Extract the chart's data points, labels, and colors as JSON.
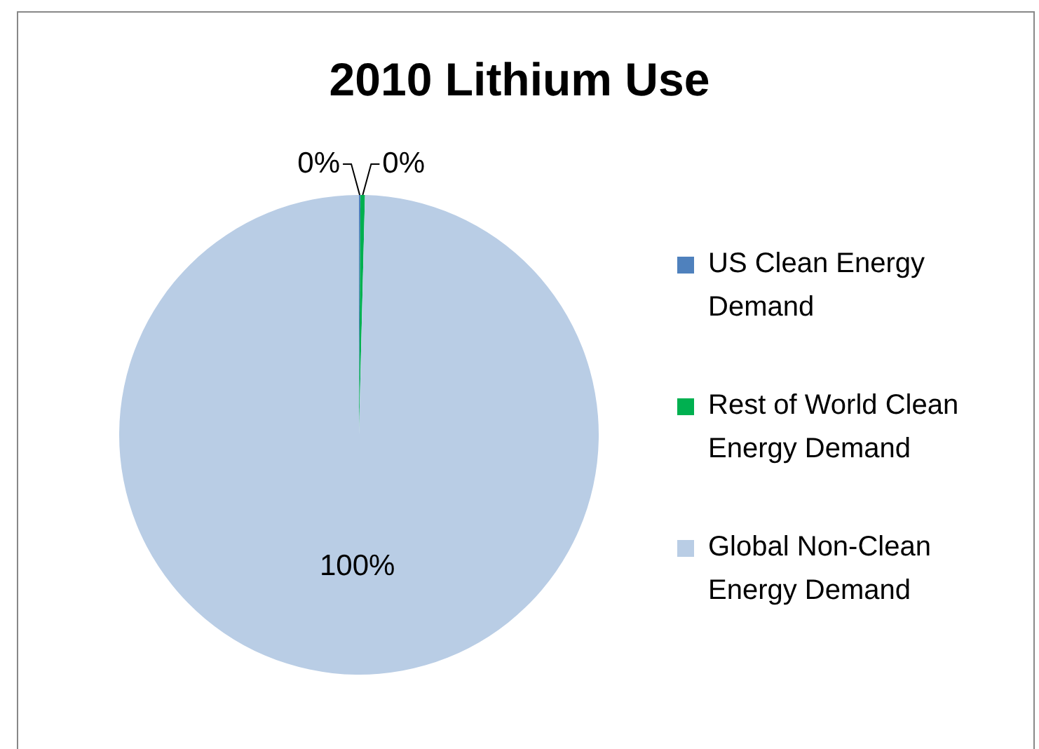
{
  "chart_data": {
    "type": "pie",
    "title": "2010 Lithium Use",
    "categories": [
      "US Clean Energy Demand",
      "Rest of World Clean Energy Demand",
      "Global Non-Clean Energy Demand"
    ],
    "values": [
      0.1,
      0.3,
      99.6
    ],
    "colors": [
      "#4f81bd",
      "#00b050",
      "#b9cde5"
    ],
    "value_labels": [
      "0%",
      "0%",
      "100%"
    ],
    "legend": "right"
  }
}
